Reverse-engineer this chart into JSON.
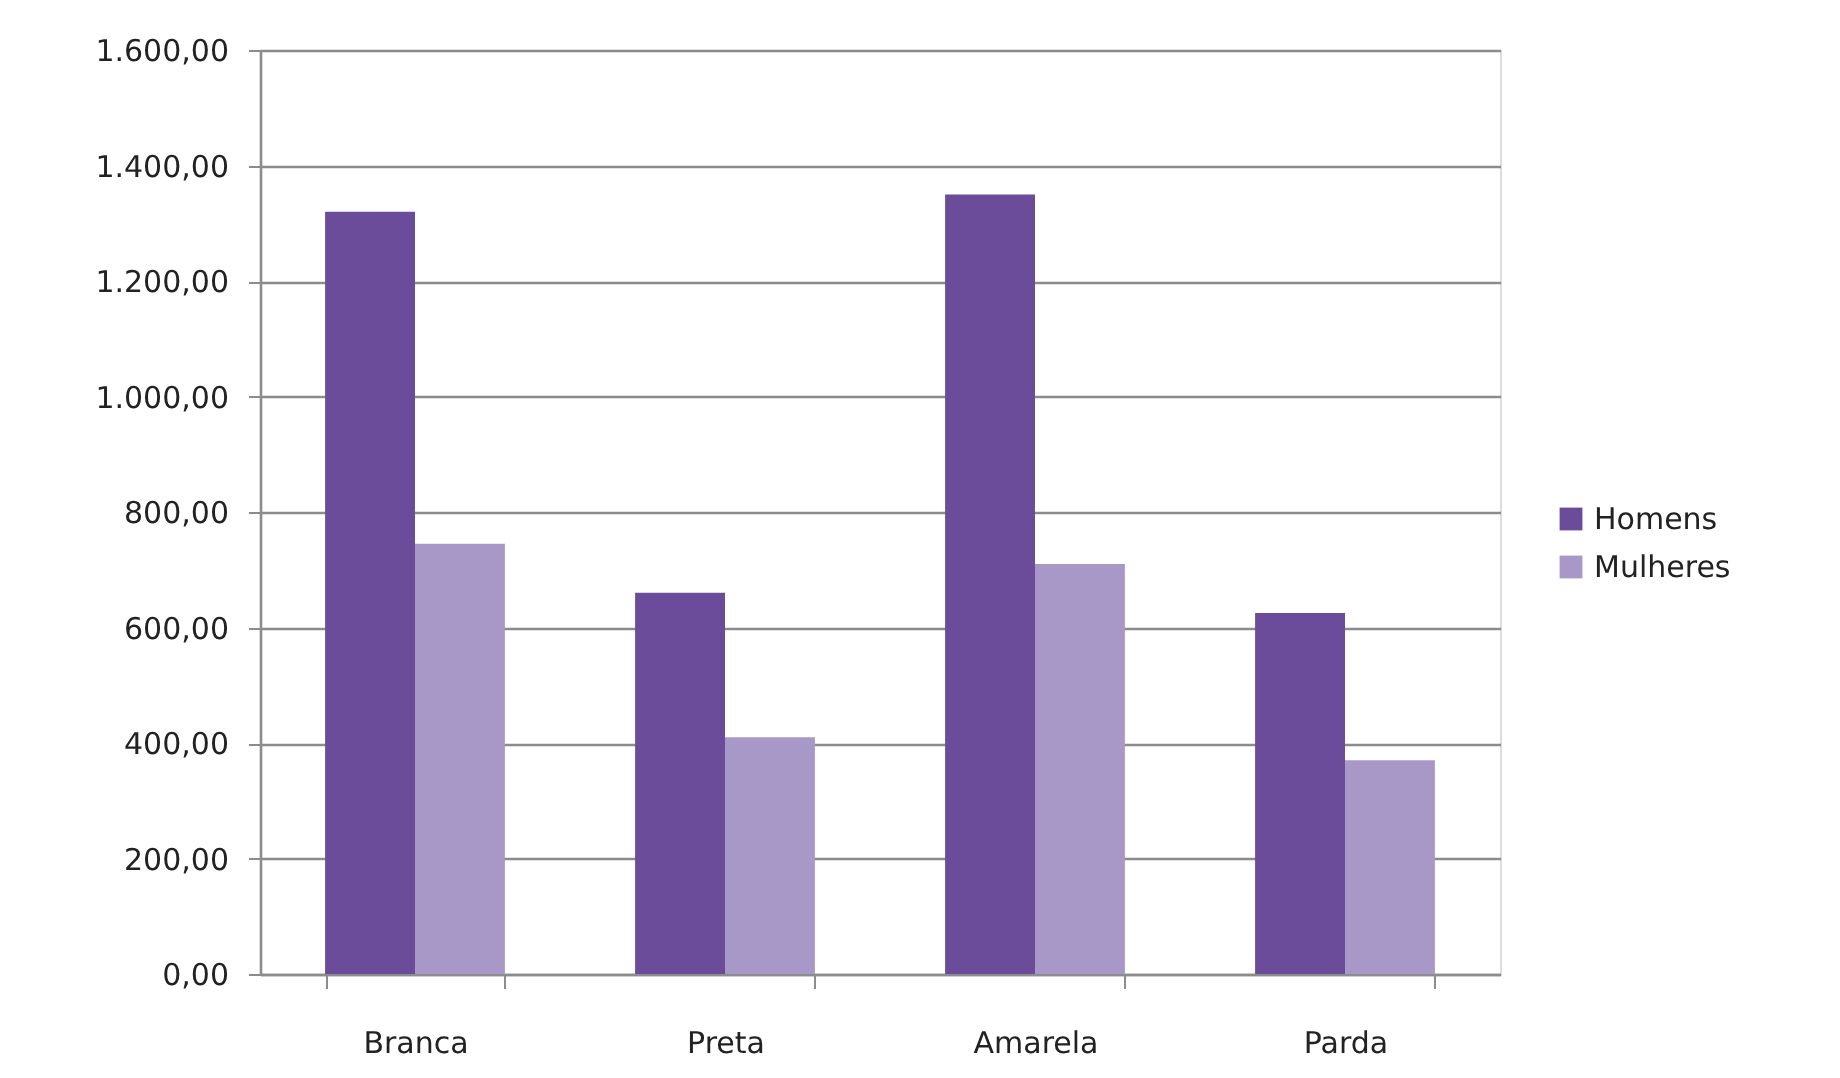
{
  "chart_data": {
    "type": "bar",
    "categories": [
      "Branca",
      "Preta",
      "Amarela",
      "Parda"
    ],
    "series": [
      {
        "name": "Homens",
        "color": "#6b4c9a",
        "values": [
          1320,
          660,
          1350,
          625
        ]
      },
      {
        "name": "Mulheres",
        "color": "#a898c8",
        "values": [
          745,
          410,
          710,
          370
        ]
      }
    ],
    "ylim": [
      0,
      1600
    ],
    "yticks": [
      {
        "value": 0,
        "label": "0,00"
      },
      {
        "value": 200,
        "label": "200,00"
      },
      {
        "value": 400,
        "label": "400,00"
      },
      {
        "value": 600,
        "label": "600,00"
      },
      {
        "value": 800,
        "label": "800,00"
      },
      {
        "value": 1000,
        "label": "1.000,00"
      },
      {
        "value": 1200,
        "label": "1.200,00"
      },
      {
        "value": 1400,
        "label": "1.400,00"
      },
      {
        "value": 1600,
        "label": "1.600,00"
      }
    ],
    "grid": "y",
    "legend": "right"
  }
}
